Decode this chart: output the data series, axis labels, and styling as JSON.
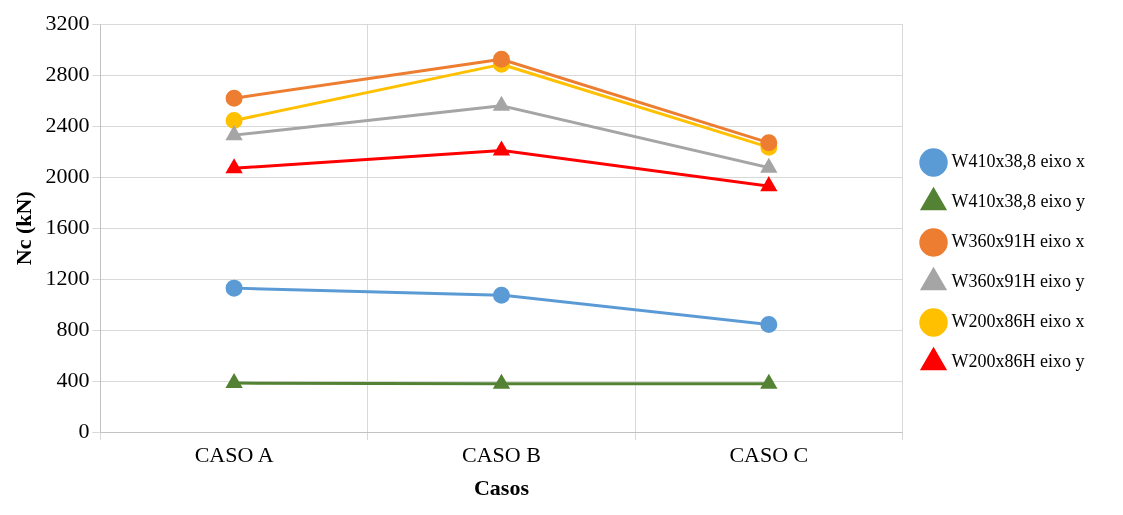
{
  "chart_data": {
    "type": "line",
    "xlabel": "Casos",
    "ylabel": "Nc (kN)",
    "categories": [
      "CASO A",
      "CASO B",
      "CASO C"
    ],
    "ylim": [
      0,
      3200
    ],
    "yticks": [
      0,
      400,
      800,
      1200,
      1600,
      2000,
      2400,
      2800,
      3200
    ],
    "grid": true,
    "legend": "right",
    "series": [
      {
        "name": "W410x38,8 eixo x",
        "color": "#5b9bd5",
        "marker": "circle",
        "values": [
          1130,
          1075,
          845
        ]
      },
      {
        "name": "W410x38,8 eixo y",
        "color": "#548235",
        "marker": "triangle",
        "values": [
          385,
          380,
          380
        ]
      },
      {
        "name": "W360x91H eixo x",
        "color": "#ed7d31",
        "marker": "circle",
        "values": [
          2620,
          2925,
          2270
        ]
      },
      {
        "name": "W360x91H eixo y",
        "color": "#a5a5a5",
        "marker": "triangle",
        "values": [
          2330,
          2560,
          2075
        ]
      },
      {
        "name": "W200x86H eixo x",
        "color": "#ffc000",
        "marker": "circle",
        "values": [
          2445,
          2885,
          2235
        ]
      },
      {
        "name": "W200x86H eixo y",
        "color": "#ff0000",
        "marker": "triangle",
        "values": [
          2070,
          2210,
          1930
        ]
      }
    ]
  }
}
